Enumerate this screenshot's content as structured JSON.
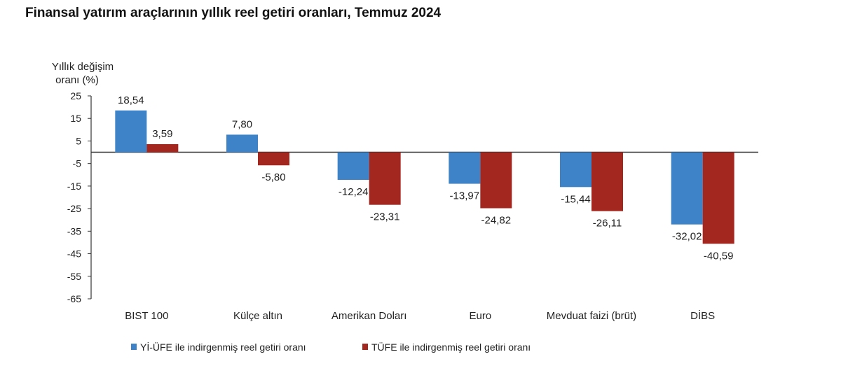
{
  "chart_data": {
    "type": "bar",
    "title": "Finansal yatırım araçlarının yıllık reel getiri oranları, Temmuz 2024",
    "ylabel_line1": "Yıllık değişim",
    "ylabel_line2": "oranı (%)",
    "ylim": [
      -65,
      25
    ],
    "yticks": [
      25,
      15,
      5,
      -5,
      -15,
      -25,
      -35,
      -45,
      -55,
      -65
    ],
    "categories": [
      "BIST 100",
      "Külçe altın",
      "Amerikan Doları",
      "Euro",
      "Mevduat faizi (brüt)",
      "DİBS"
    ],
    "series": [
      {
        "name": "Yİ-ÜFE ile indirgenmiş reel getiri oranı",
        "color": "#3e82c7",
        "values": [
          18.54,
          7.8,
          -12.24,
          -13.97,
          -15.44,
          -32.02
        ],
        "labels": [
          "18,54",
          "7,80",
          "-12,24",
          "-13,97",
          "-15,44",
          "-32,02"
        ]
      },
      {
        "name": "TÜFE ile indirgenmiş reel getiri oranı",
        "color": "#a3261f",
        "values": [
          3.59,
          -5.8,
          -23.31,
          -24.82,
          -26.11,
          -40.59
        ],
        "labels": [
          "3,59",
          "-5,80",
          "-23,31",
          "-24,82",
          "-26,11",
          "-40,59"
        ]
      }
    ],
    "grid": false,
    "legend_position": "bottom"
  }
}
